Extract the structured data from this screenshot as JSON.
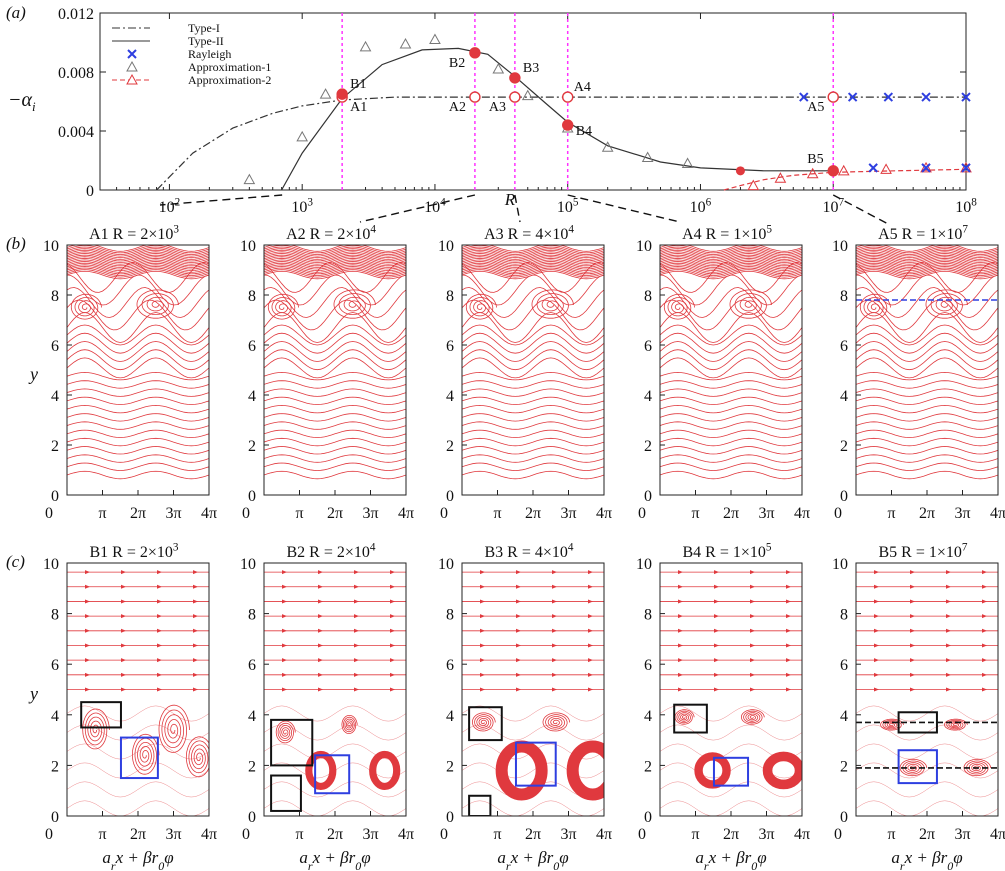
{
  "panel_labels": {
    "a": "(a)",
    "b": "(b)",
    "c": "(c)"
  },
  "symbols": {
    "pi": "π"
  },
  "chart_data": [
    {
      "type": "line",
      "panel": "(a)",
      "xlabel": "R",
      "ylabel": "−α",
      "ylabel_sub": "i",
      "xscale": "log",
      "xlim": [
        30,
        100000000
      ],
      "ylim": [
        0,
        0.012
      ],
      "x_ticks": [
        {
          "value": 100,
          "base": "10",
          "exp": "2"
        },
        {
          "value": 1000,
          "base": "10",
          "exp": "3"
        },
        {
          "value": 10000,
          "base": "10",
          "exp": "4"
        },
        {
          "value": 100000,
          "base": "10",
          "exp": "5"
        },
        {
          "value": 1000000,
          "base": "10",
          "exp": "6"
        },
        {
          "value": 10000000,
          "base": "10",
          "exp": "7"
        },
        {
          "value": 100000000,
          "base": "10",
          "exp": "8"
        }
      ],
      "y_ticks": [
        "0",
        "0.004",
        "0.008",
        "0.012"
      ],
      "legend_position": "top-left",
      "legend": [
        {
          "label": "Type-I",
          "style": "dashdot",
          "color": "#333333"
        },
        {
          "label": "Type-II",
          "style": "solid",
          "color": "#333333"
        },
        {
          "label": "Rayleigh",
          "style": "cross",
          "color": "#1f3fd6"
        },
        {
          "label": "Approximation-1",
          "style": "triangle",
          "color": "#777777"
        },
        {
          "label": "Approximation-2",
          "style": "dashed-triangle",
          "color": "#e0393e"
        }
      ],
      "series": [
        {
          "name": "Type-I",
          "x": [
            80,
            150,
            300,
            600,
            1000,
            2000,
            5000,
            10000,
            20000,
            40000,
            100000,
            1000000,
            10000000,
            100000000
          ],
          "y": [
            0,
            0.0025,
            0.0042,
            0.0052,
            0.0057,
            0.0061,
            0.0063,
            0.0063,
            0.0063,
            0.0063,
            0.0063,
            0.0063,
            0.0063,
            0.0063
          ]
        },
        {
          "name": "Type-II",
          "x": [
            700,
            1000,
            2000,
            4000,
            8000,
            15000,
            25000,
            40000,
            70000,
            100000,
            200000,
            500000,
            1000000,
            3000000,
            10000000
          ],
          "y": [
            0,
            0.0025,
            0.0062,
            0.0085,
            0.0095,
            0.0096,
            0.0092,
            0.0077,
            0.0058,
            0.0046,
            0.003,
            0.0019,
            0.0015,
            0.0013,
            0.0013
          ]
        },
        {
          "name": "Rayleigh",
          "x": [
            6000000,
            14000000,
            26000000,
            50000000,
            100000000
          ],
          "y": [
            0.0063,
            0.0063,
            0.0063,
            0.0063,
            0.0063
          ]
        },
        {
          "name": "Rayleigh",
          "x": [
            20000000,
            50000000,
            100000000
          ],
          "y": [
            0.0015,
            0.0015,
            0.0015
          ]
        },
        {
          "name": "Approximation-1",
          "x": [
            400,
            1000,
            1500,
            3000,
            6000,
            10000,
            30000,
            50000,
            100000,
            200000,
            400000,
            800000
          ],
          "y": [
            0.0007,
            0.0036,
            0.0065,
            0.0097,
            0.0099,
            0.0102,
            0.0082,
            0.0064,
            0.0042,
            0.0029,
            0.0022,
            0.0018
          ]
        },
        {
          "name": "Approximation-2",
          "x": [
            2500000,
            4000000,
            7000000,
            12000000,
            25000000,
            50000000,
            100000000
          ],
          "y": [
            0.0003,
            0.0008,
            0.0011,
            0.0013,
            0.0014,
            0.0015,
            0.0015
          ]
        }
      ],
      "approx2_dashed": {
        "x": [
          1500000,
          2000000,
          3000000,
          5000000,
          10000000,
          30000000,
          100000000
        ],
        "y": [
          0,
          0.0003,
          0.0007,
          0.001,
          0.0012,
          0.0013,
          0.0014
        ]
      },
      "type2_extra_points": {
        "x": [
          2000000
        ],
        "y": [
          0.0013
        ]
      },
      "marked_points": [
        {
          "label": "A1",
          "x": 2000,
          "y": 0.0063,
          "filled": false
        },
        {
          "label": "A2",
          "x": 20000,
          "y": 0.0063,
          "filled": false
        },
        {
          "label": "A3",
          "x": 40000,
          "y": 0.0063,
          "filled": false
        },
        {
          "label": "A4",
          "x": 100000,
          "y": 0.0063,
          "filled": false
        },
        {
          "label": "A5",
          "x": 10000000,
          "y": 0.0063,
          "filled": false
        },
        {
          "label": "B1",
          "x": 2000,
          "y": 0.0065,
          "filled": true
        },
        {
          "label": "B2",
          "x": 20000,
          "y": 0.0093,
          "filled": true
        },
        {
          "label": "B3",
          "x": 40000,
          "y": 0.0076,
          "filled": true
        },
        {
          "label": "B4",
          "x": 100000,
          "y": 0.0044,
          "filled": true
        },
        {
          "label": "B5",
          "x": 10000000,
          "y": 0.0013,
          "filled": true
        }
      ]
    },
    {
      "type": "streamline-grid",
      "panel": "(b)",
      "ylabel": "y",
      "ylim": [
        0,
        10
      ],
      "y_ticks": [
        "0",
        "2",
        "4",
        "6",
        "8",
        "10"
      ],
      "x_ticks": [
        "0",
        "π",
        "2π",
        "3π",
        "4π"
      ],
      "subplots": [
        {
          "name": "A1",
          "title": "A1 R = 2×10",
          "exp": "3"
        },
        {
          "name": "A2",
          "title": "A2 R = 2×10",
          "exp": "4"
        },
        {
          "name": "A3",
          "title": "A3 R = 4×10",
          "exp": "4"
        },
        {
          "name": "A4",
          "title": "A4 R = 1×10",
          "exp": "5"
        },
        {
          "name": "A5",
          "title": "A5 R = 1×10",
          "exp": "7"
        }
      ]
    },
    {
      "type": "streamline-grid",
      "panel": "(c)",
      "ylabel": "y",
      "xlabel": "a_r x + βr_0 φ",
      "ylim": [
        0,
        10
      ],
      "y_ticks": [
        "0",
        "2",
        "4",
        "6",
        "8",
        "10"
      ],
      "x_ticks": [
        "0",
        "π",
        "2π",
        "3π",
        "4π"
      ],
      "subplots": [
        {
          "name": "B1",
          "title": "B1 R = 2×10",
          "exp": "3"
        },
        {
          "name": "B2",
          "title": "B2 R = 2×10",
          "exp": "4"
        },
        {
          "name": "B3",
          "title": "B3 R = 4×10",
          "exp": "4"
        },
        {
          "name": "B4",
          "title": "B4 R = 1×10",
          "exp": "5"
        },
        {
          "name": "B5",
          "title": "B5 R = 1×10",
          "exp": "7"
        }
      ]
    }
  ],
  "colors": {
    "red": "#e0393e",
    "magenta": "#ff33ff",
    "blue": "#2e3fe0",
    "black": "#111111",
    "gray": "#777777"
  }
}
